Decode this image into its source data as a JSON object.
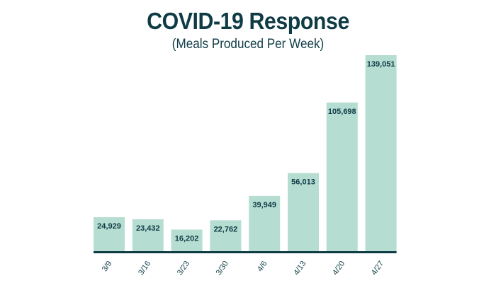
{
  "chart_data": {
    "type": "bar",
    "title": "COVID-19 Response",
    "subtitle": "(Meals Produced Per Week)",
    "xlabel": "",
    "ylabel": "",
    "categories": [
      "3/9",
      "3/16",
      "3/23",
      "3/30",
      "4/6",
      "4/13",
      "4/20",
      "4/27"
    ],
    "values": [
      24929,
      23432,
      16202,
      22762,
      39949,
      56013,
      105698,
      139051
    ],
    "value_labels": [
      "24,929",
      "23,432",
      "16,202",
      "22,762",
      "39,949",
      "56,013",
      "105,698",
      "139,051"
    ],
    "ylim": [
      0,
      139051
    ],
    "grid": false,
    "legend": "none",
    "colors": {
      "bar": "#b5ddd2",
      "axis": "#0f3b45",
      "text": "#0f3b45"
    }
  }
}
